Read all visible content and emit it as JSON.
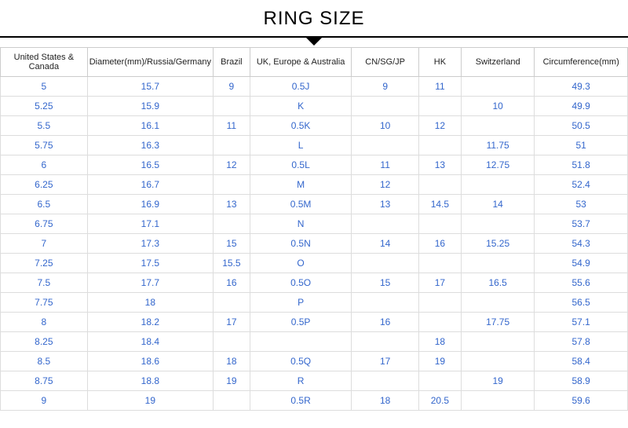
{
  "title": "RING SIZE",
  "columns": [
    "United States & Canada",
    "Diameter(mm)/Russia/Germany",
    "Brazil",
    "UK, Europe & Australia",
    "CN/SG/JP",
    "HK",
    "Switzerland",
    "Circumference(mm)"
  ],
  "rows": [
    [
      "5",
      "15.7",
      "9",
      "0.5J",
      "9",
      "11",
      "",
      "49.3"
    ],
    [
      "5.25",
      "15.9",
      "",
      "K",
      "",
      "",
      "10",
      "49.9"
    ],
    [
      "5.5",
      "16.1",
      "11",
      "0.5K",
      "10",
      "12",
      "",
      "50.5"
    ],
    [
      "5.75",
      "16.3",
      "",
      "L",
      "",
      "",
      "11.75",
      "51"
    ],
    [
      "6",
      "16.5",
      "12",
      "0.5L",
      "11",
      "13",
      "12.75",
      "51.8"
    ],
    [
      "6.25",
      "16.7",
      "",
      "M",
      "12",
      "",
      "",
      "52.4"
    ],
    [
      "6.5",
      "16.9",
      "13",
      "0.5M",
      "13",
      "14.5",
      "14",
      "53"
    ],
    [
      "6.75",
      "17.1",
      "",
      "N",
      "",
      "",
      "",
      "53.7"
    ],
    [
      "7",
      "17.3",
      "15",
      "0.5N",
      "14",
      "16",
      "15.25",
      "54.3"
    ],
    [
      "7.25",
      "17.5",
      "15.5",
      "O",
      "",
      "",
      "",
      "54.9"
    ],
    [
      "7.5",
      "17.7",
      "16",
      "0.5O",
      "15",
      "17",
      "16.5",
      "55.6"
    ],
    [
      "7.75",
      "18",
      "",
      "P",
      "",
      "",
      "",
      "56.5"
    ],
    [
      "8",
      "18.2",
      "17",
      "0.5P",
      "16",
      "",
      "17.75",
      "57.1"
    ],
    [
      "8.25",
      "18.4",
      "",
      "",
      "",
      "18",
      "",
      "57.8"
    ],
    [
      "8.5",
      "18.6",
      "18",
      "0.5Q",
      "17",
      "19",
      "",
      "58.4"
    ],
    [
      "8.75",
      "18.8",
      "19",
      "R",
      "",
      "",
      "19",
      "58.9"
    ],
    [
      "9",
      "19",
      "",
      "0.5R",
      "18",
      "20.5",
      "",
      "59.6"
    ]
  ],
  "styling": {
    "title_fontsize": 24,
    "header_fontsize": 11,
    "cell_fontsize": 12,
    "title_color": "#000000",
    "header_color": "#222222",
    "cell_color": "#3366cc",
    "border_color": "#cccccc",
    "cell_border_color": "#dddddd",
    "background": "#ffffff",
    "col_widths_pct": [
      14.5,
      17.5,
      6,
      17,
      11,
      7,
      12,
      15
    ]
  }
}
